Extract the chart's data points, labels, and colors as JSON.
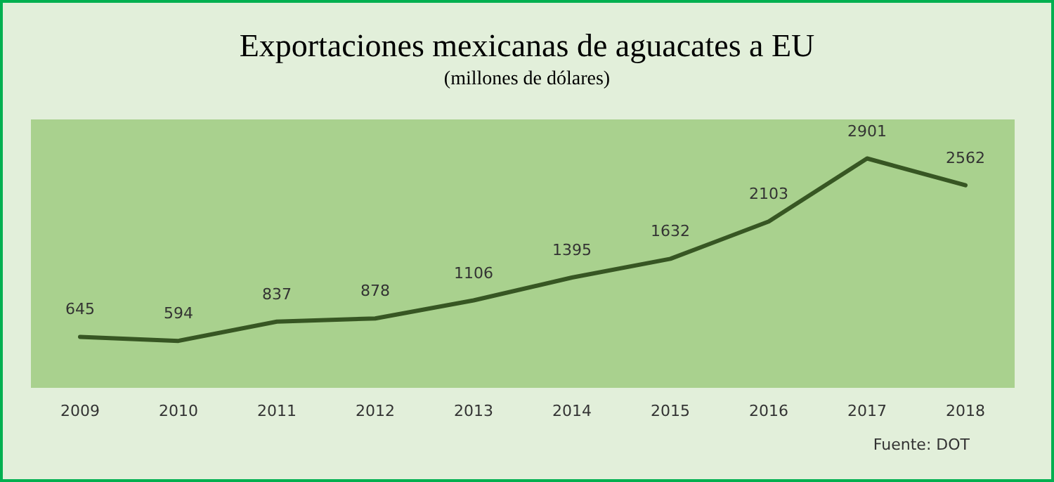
{
  "chart_data": {
    "type": "line",
    "title": "Exportaciones mexicanas de aguacates a EU",
    "subtitle": "(millones de dólares)",
    "categories": [
      "2009",
      "2010",
      "2011",
      "2012",
      "2013",
      "2014",
      "2015",
      "2016",
      "2017",
      "2018"
    ],
    "series": [
      {
        "color": "#375623",
        "values": [
          645,
          594,
          837,
          878,
          1106,
          1395,
          1632,
          2103,
          2901,
          2562
        ]
      }
    ],
    "data_labels": true,
    "marker": "none",
    "line_style": "solid",
    "annotations": [
      "Fuente: DOT"
    ]
  }
}
